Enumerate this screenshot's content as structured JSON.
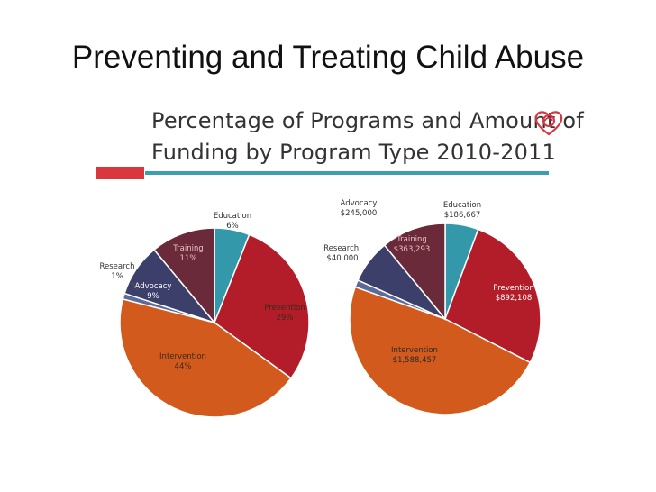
{
  "slide": {
    "title": "Preventing and Treating Child Abuse",
    "chart_title_line1": "Percentage of Programs and Amount of",
    "chart_title_line2": "Funding by Program Type 2010-2011"
  },
  "colors": {
    "teal": "#3399aa",
    "red": "#b31d2a",
    "orange": "#d25a1d",
    "navy": "#3d3f6b",
    "maroon": "#6a2a3a",
    "bar_red": "#d9363e",
    "bar_teal": "#3c9fb0"
  },
  "chart_data": [
    {
      "type": "pie",
      "title": "",
      "categories": [
        "Education",
        "Prevention",
        "Intervention",
        "Research",
        "Advocacy",
        "Training"
      ],
      "values": [
        6,
        29,
        44,
        1,
        9,
        11
      ],
      "labels": [
        "6%",
        "29%",
        "44%",
        "1%",
        "9%",
        "11%"
      ],
      "unit": "%"
    },
    {
      "type": "pie",
      "title": "",
      "categories": [
        "Education",
        "Prevention",
        "Intervention",
        "Research,",
        "Advocacy",
        "Training"
      ],
      "values": [
        186667,
        892108,
        1588457,
        40000,
        245000,
        363293
      ],
      "labels": [
        "$186,667",
        "$892,108",
        "$1,588,457",
        "$40,000",
        "$245,000",
        "$363,293"
      ],
      "unit": "$"
    }
  ]
}
